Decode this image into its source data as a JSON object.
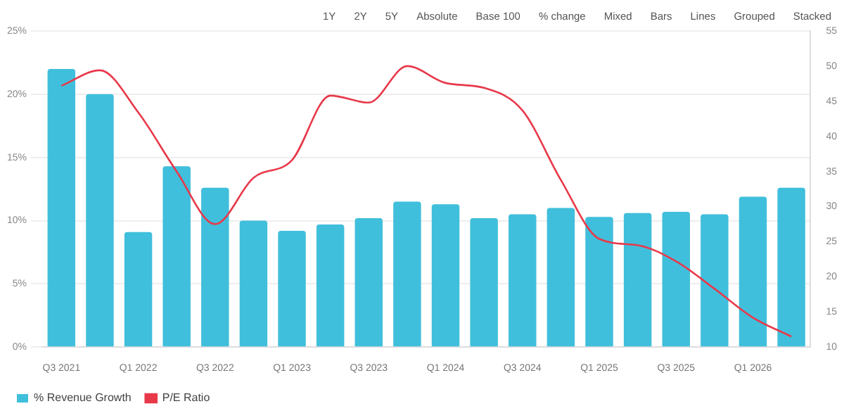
{
  "chart_data": {
    "type": "bar",
    "categories": [
      "Q3 2021",
      null,
      "Q1 2022",
      null,
      "Q3 2022",
      null,
      "Q1 2023",
      null,
      "Q3 2023",
      null,
      "Q1 2024",
      null,
      "Q3 2024",
      null,
      "Q1 2025",
      null,
      "Q3 2025",
      null,
      "Q1 2026",
      null
    ],
    "series": [
      {
        "name": "% Revenue Growth",
        "color": "#40bfdc",
        "values": [
          22.0,
          20.0,
          9.1,
          14.3,
          12.6,
          10.0,
          9.2,
          9.7,
          10.2,
          11.5,
          11.3,
          10.2,
          10.5,
          11.0,
          10.3,
          10.6,
          10.7,
          10.5,
          11.9,
          12.6
        ]
      },
      {
        "name": "P/E Ratio",
        "type": "line",
        "axis": "y2",
        "color": "#e8394a",
        "values": [
          47.2,
          49.4,
          43.4,
          35.0,
          27.5,
          34.1,
          36.6,
          45.8,
          44.8,
          50.0,
          47.6,
          46.9,
          43.7,
          33.8,
          25.4,
          24.5,
          22.2,
          18.3,
          14.2,
          11.5
        ]
      }
    ],
    "ylim": [
      0,
      25
    ],
    "yticks": [
      {
        "value": 0,
        "label": "0%"
      },
      {
        "value": 5,
        "label": "5%"
      },
      {
        "value": 10,
        "label": "10%"
      },
      {
        "value": 15,
        "label": "15%"
      },
      {
        "value": 20,
        "label": "20%"
      },
      {
        "value": 25,
        "label": "25%"
      }
    ],
    "y2lim": [
      10,
      55
    ],
    "y2ticks": [
      10,
      15,
      20,
      25,
      30,
      35,
      40,
      45,
      50,
      55
    ],
    "grid": "y",
    "legend": "bottom left",
    "marker": "none",
    "line_style": "solid",
    "annotations": [
      "1Y",
      "2Y",
      "5Y",
      "Absolute",
      "Base 100",
      "% change",
      "Mixed",
      "Bars",
      "Lines",
      "Grouped",
      "Stacked"
    ]
  }
}
